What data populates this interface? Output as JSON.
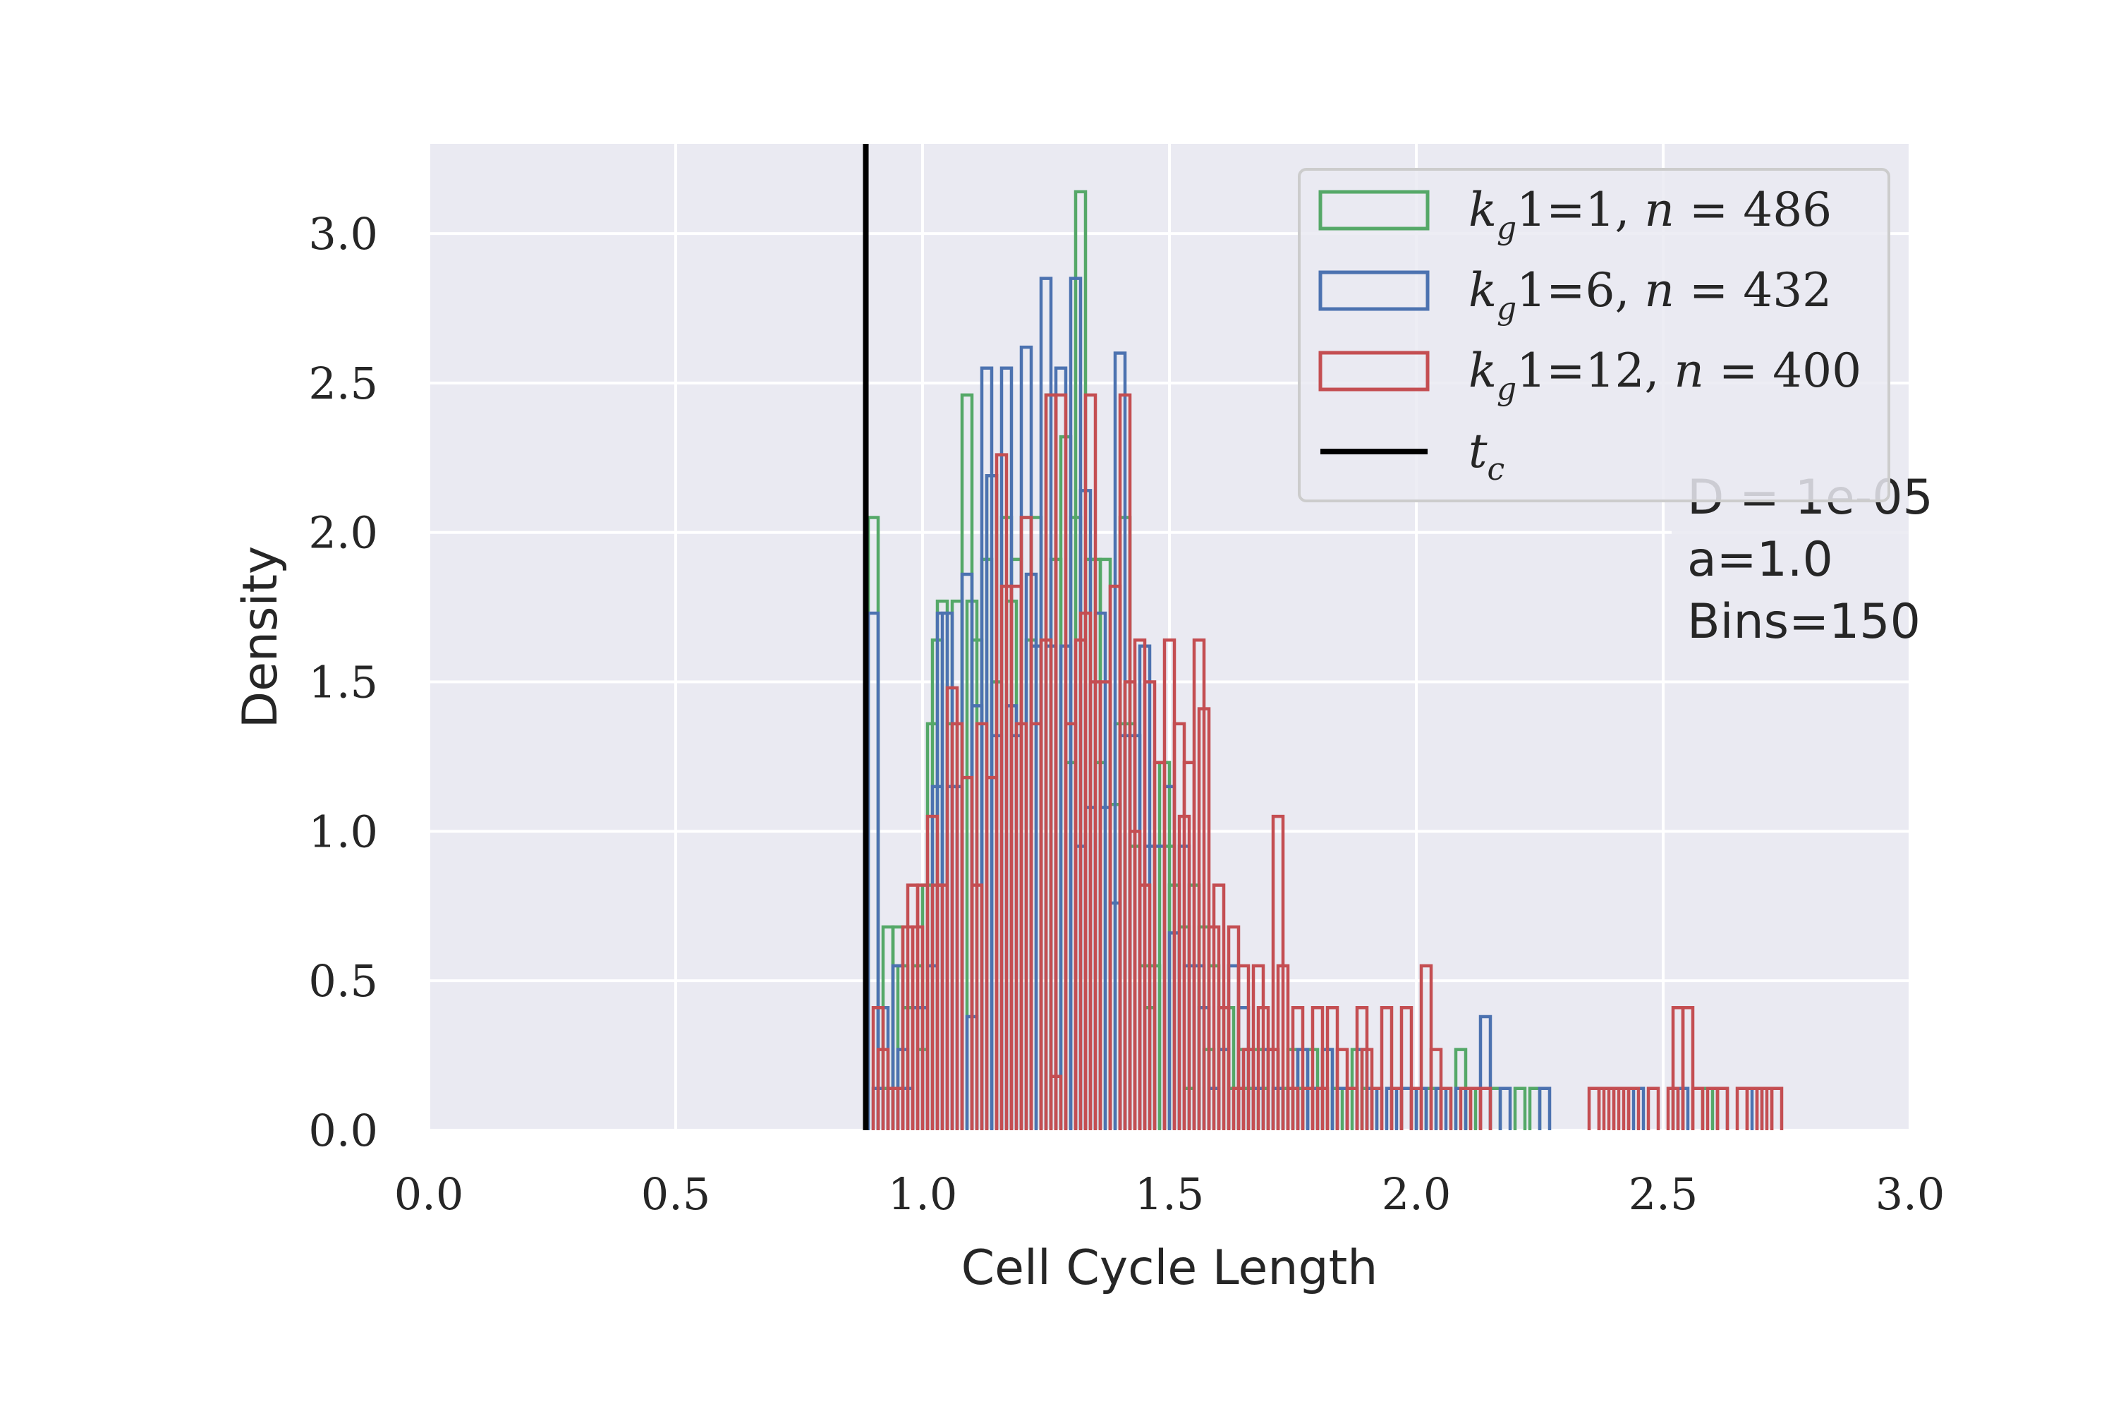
{
  "chart_data": {
    "type": "histogram",
    "xlabel": "Cell Cycle Length",
    "ylabel": "Density",
    "xlim": [
      0.0,
      3.0
    ],
    "ylim": [
      0.0,
      3.3
    ],
    "xticks": [
      "0.0",
      "0.5",
      "1.0",
      "1.5",
      "2.0",
      "2.5",
      "3.0"
    ],
    "yticks": [
      "0.0",
      "0.5",
      "1.0",
      "1.5",
      "2.0",
      "2.5",
      "3.0"
    ],
    "grid": true,
    "legend_position": "upper right",
    "tc": 0.885,
    "annotation": [
      "D = 1e-05",
      "a=1.0",
      "Bins=150"
    ],
    "series": [
      {
        "name": "k_g1=1, n = 486",
        "label_parts": [
          "k",
          "g",
          "1=1, ",
          "n",
          " = 486"
        ],
        "color": "#55a868",
        "points": [
          [
            0.89,
            2.05
          ],
          [
            0.91,
            0.14
          ],
          [
            0.92,
            0.68
          ],
          [
            0.94,
            0.68
          ],
          [
            0.95,
            0.55
          ],
          [
            0.96,
            0.41
          ],
          [
            0.98,
            0.55
          ],
          [
            0.99,
            0.27
          ],
          [
            1.0,
            0.82
          ],
          [
            1.01,
            1.36
          ],
          [
            1.02,
            1.64
          ],
          [
            1.03,
            1.77
          ],
          [
            1.05,
            1.36
          ],
          [
            1.06,
            1.77
          ],
          [
            1.08,
            2.46
          ],
          [
            1.09,
            1.77
          ],
          [
            1.1,
            1.64
          ],
          [
            1.12,
            1.91
          ],
          [
            1.13,
            2.19
          ],
          [
            1.14,
            1.5
          ],
          [
            1.16,
            2.05
          ],
          [
            1.17,
            1.77
          ],
          [
            1.18,
            1.91
          ],
          [
            1.2,
            2.05
          ],
          [
            1.21,
            1.64
          ],
          [
            1.22,
            2.05
          ],
          [
            1.24,
            1.64
          ],
          [
            1.25,
            2.46
          ],
          [
            1.26,
            1.91
          ],
          [
            1.28,
            2.32
          ],
          [
            1.29,
            1.23
          ],
          [
            1.3,
            2.05
          ],
          [
            1.31,
            3.14
          ],
          [
            1.33,
            1.91
          ],
          [
            1.34,
            1.91
          ],
          [
            1.35,
            1.23
          ],
          [
            1.36,
            1.91
          ],
          [
            1.38,
            1.09
          ],
          [
            1.39,
            1.36
          ],
          [
            1.4,
            2.05
          ],
          [
            1.41,
            1.36
          ],
          [
            1.42,
            0.95
          ],
          [
            1.44,
            0.55
          ],
          [
            1.45,
            0.41
          ],
          [
            1.46,
            0.55
          ],
          [
            1.48,
            1.23
          ],
          [
            1.49,
            0.95
          ],
          [
            1.5,
            0.82
          ],
          [
            1.52,
            0.68
          ],
          [
            1.53,
            0.14
          ],
          [
            1.54,
            0.82
          ],
          [
            1.56,
            0.68
          ],
          [
            1.57,
            0.27
          ],
          [
            1.58,
            0.55
          ],
          [
            1.6,
            0.27
          ],
          [
            1.61,
            0.41
          ],
          [
            1.62,
            0.14
          ],
          [
            1.64,
            0.27
          ],
          [
            1.65,
            0.14
          ],
          [
            1.67,
            0.27
          ],
          [
            1.68,
            0.14
          ],
          [
            1.7,
            0.27
          ],
          [
            1.71,
            0.14
          ],
          [
            1.73,
            0.14
          ],
          [
            1.74,
            0.27
          ],
          [
            1.75,
            0.14
          ],
          [
            1.77,
            0.14
          ],
          [
            1.78,
            0.27
          ],
          [
            1.8,
            0.14
          ],
          [
            1.81,
            0.27
          ],
          [
            1.83,
            0.14
          ],
          [
            1.84,
            0.14
          ],
          [
            1.86,
            0.14
          ],
          [
            1.87,
            0.27
          ],
          [
            1.89,
            0.14
          ],
          [
            1.9,
            0.14
          ],
          [
            1.95,
            0.14
          ],
          [
            2.0,
            0.14
          ],
          [
            2.02,
            0.14
          ],
          [
            2.05,
            0.14
          ],
          [
            2.08,
            0.27
          ],
          [
            2.1,
            0.14
          ],
          [
            2.15,
            0.14
          ],
          [
            2.2,
            0.14
          ],
          [
            2.23,
            0.14
          ],
          [
            2.52,
            0.14
          ],
          [
            2.58,
            0.14
          ]
        ]
      },
      {
        "name": "k_g1=6, n = 432",
        "label_parts": [
          "k",
          "g",
          "1=6, ",
          "n",
          " = 432"
        ],
        "color": "#4c72b0",
        "points": [
          [
            0.89,
            1.73
          ],
          [
            0.9,
            0.14
          ],
          [
            0.91,
            0.41
          ],
          [
            0.93,
            0.14
          ],
          [
            0.94,
            0.55
          ],
          [
            0.95,
            0.27
          ],
          [
            0.96,
            0.14
          ],
          [
            0.98,
            0.41
          ],
          [
            0.99,
            0.41
          ],
          [
            1.01,
            0.55
          ],
          [
            1.02,
            1.15
          ],
          [
            1.03,
            1.73
          ],
          [
            1.04,
            1.73
          ],
          [
            1.05,
            1.15
          ],
          [
            1.06,
            1.15
          ],
          [
            1.08,
            1.86
          ],
          [
            1.09,
            0.38
          ],
          [
            1.1,
            1.42
          ],
          [
            1.12,
            2.55
          ],
          [
            1.13,
            2.19
          ],
          [
            1.14,
            1.32
          ],
          [
            1.16,
            2.55
          ],
          [
            1.17,
            1.42
          ],
          [
            1.18,
            1.32
          ],
          [
            1.2,
            2.62
          ],
          [
            1.21,
            1.86
          ],
          [
            1.22,
            1.62
          ],
          [
            1.24,
            2.85
          ],
          [
            1.25,
            1.62
          ],
          [
            1.27,
            2.55
          ],
          [
            1.28,
            1.62
          ],
          [
            1.3,
            2.85
          ],
          [
            1.31,
            0.95
          ],
          [
            1.32,
            2.14
          ],
          [
            1.33,
            1.08
          ],
          [
            1.35,
            1.73
          ],
          [
            1.36,
            1.08
          ],
          [
            1.38,
            0.76
          ],
          [
            1.39,
            2.6
          ],
          [
            1.4,
            1.32
          ],
          [
            1.42,
            1.32
          ],
          [
            1.44,
            1.62
          ],
          [
            1.45,
            0.95
          ],
          [
            1.47,
            0.95
          ],
          [
            1.49,
            1.15
          ],
          [
            1.5,
            0.66
          ],
          [
            1.52,
            0.95
          ],
          [
            1.53,
            0.55
          ],
          [
            1.55,
            0.55
          ],
          [
            1.56,
            0.41
          ],
          [
            1.58,
            0.14
          ],
          [
            1.6,
            0.27
          ],
          [
            1.62,
            0.55
          ],
          [
            1.64,
            0.41
          ],
          [
            1.65,
            0.27
          ],
          [
            1.67,
            0.14
          ],
          [
            1.69,
            0.27
          ],
          [
            1.71,
            0.14
          ],
          [
            1.74,
            0.14
          ],
          [
            1.76,
            0.27
          ],
          [
            1.78,
            0.14
          ],
          [
            1.81,
            0.27
          ],
          [
            1.84,
            0.14
          ],
          [
            1.86,
            0.14
          ],
          [
            1.88,
            0.27
          ],
          [
            1.9,
            0.14
          ],
          [
            1.94,
            0.14
          ],
          [
            1.97,
            0.14
          ],
          [
            2.0,
            0.14
          ],
          [
            2.04,
            0.14
          ],
          [
            2.08,
            0.14
          ],
          [
            2.13,
            0.38
          ],
          [
            2.17,
            0.14
          ],
          [
            2.25,
            0.14
          ],
          [
            2.44,
            0.14
          ],
          [
            2.53,
            0.14
          ],
          [
            2.61,
            0.14
          ],
          [
            2.68,
            0.14
          ]
        ]
      },
      {
        "name": "k_g1=12, n = 400",
        "label_parts": [
          "k",
          "g",
          "1=12, ",
          "n",
          " = 400"
        ],
        "color": "#c44e52",
        "points": [
          [
            0.9,
            0.41
          ],
          [
            0.91,
            0.27
          ],
          [
            0.93,
            0.14
          ],
          [
            0.94,
            0.14
          ],
          [
            0.96,
            0.68
          ],
          [
            0.97,
            0.82
          ],
          [
            0.98,
            0.68
          ],
          [
            0.99,
            0.82
          ],
          [
            1.01,
            1.05
          ],
          [
            1.02,
            0.82
          ],
          [
            1.03,
            0.82
          ],
          [
            1.05,
            1.48
          ],
          [
            1.06,
            1.36
          ],
          [
            1.08,
            1.18
          ],
          [
            1.1,
            0.82
          ],
          [
            1.11,
            1.36
          ],
          [
            1.13,
            1.18
          ],
          [
            1.15,
            2.26
          ],
          [
            1.16,
            1.82
          ],
          [
            1.18,
            1.82
          ],
          [
            1.19,
            1.36
          ],
          [
            1.2,
            2.05
          ],
          [
            1.22,
            1.36
          ],
          [
            1.24,
            1.64
          ],
          [
            1.25,
            2.46
          ],
          [
            1.26,
            0.18
          ],
          [
            1.27,
            2.46
          ],
          [
            1.29,
            1.36
          ],
          [
            1.31,
            1.64
          ],
          [
            1.32,
            1.73
          ],
          [
            1.33,
            2.46
          ],
          [
            1.34,
            1.5
          ],
          [
            1.36,
            1.5
          ],
          [
            1.38,
            1.82
          ],
          [
            1.4,
            2.46
          ],
          [
            1.41,
            1.5
          ],
          [
            1.42,
            1.0
          ],
          [
            1.43,
            1.64
          ],
          [
            1.44,
            0.82
          ],
          [
            1.45,
            1.5
          ],
          [
            1.47,
            1.23
          ],
          [
            1.49,
            1.64
          ],
          [
            1.51,
            1.36
          ],
          [
            1.52,
            1.05
          ],
          [
            1.53,
            1.23
          ],
          [
            1.55,
            1.64
          ],
          [
            1.56,
            1.41
          ],
          [
            1.58,
            0.68
          ],
          [
            1.59,
            0.82
          ],
          [
            1.6,
            0.41
          ],
          [
            1.62,
            0.68
          ],
          [
            1.63,
            0.14
          ],
          [
            1.64,
            0.55
          ],
          [
            1.65,
            0.27
          ],
          [
            1.67,
            0.55
          ],
          [
            1.68,
            0.41
          ],
          [
            1.7,
            0.27
          ],
          [
            1.71,
            1.05
          ],
          [
            1.72,
            0.55
          ],
          [
            1.74,
            0.14
          ],
          [
            1.75,
            0.41
          ],
          [
            1.77,
            0.14
          ],
          [
            1.79,
            0.41
          ],
          [
            1.8,
            0.14
          ],
          [
            1.82,
            0.41
          ],
          [
            1.84,
            0.27
          ],
          [
            1.86,
            0.14
          ],
          [
            1.88,
            0.41
          ],
          [
            1.89,
            0.27
          ],
          [
            1.91,
            0.14
          ],
          [
            1.93,
            0.41
          ],
          [
            1.95,
            0.14
          ],
          [
            1.97,
            0.41
          ],
          [
            1.99,
            0.14
          ],
          [
            2.01,
            0.55
          ],
          [
            2.03,
            0.27
          ],
          [
            2.05,
            0.14
          ],
          [
            2.09,
            0.14
          ],
          [
            2.11,
            0.14
          ],
          [
            2.13,
            0.14
          ],
          [
            2.35,
            0.14
          ],
          [
            2.37,
            0.14
          ],
          [
            2.38,
            0.14
          ],
          [
            2.4,
            0.14
          ],
          [
            2.41,
            0.14
          ],
          [
            2.43,
            0.14
          ],
          [
            2.47,
            0.14
          ],
          [
            2.51,
            0.14
          ],
          [
            2.52,
            0.41
          ],
          [
            2.54,
            0.41
          ],
          [
            2.56,
            0.14
          ],
          [
            2.59,
            0.14
          ],
          [
            2.61,
            0.14
          ],
          [
            2.65,
            0.14
          ],
          [
            2.67,
            0.14
          ],
          [
            2.69,
            0.14
          ],
          [
            2.7,
            0.14
          ],
          [
            2.72,
            0.14
          ]
        ]
      }
    ]
  },
  "legend": {
    "tc_label_base": "t",
    "tc_label_sub": "c"
  },
  "colors": {
    "panel": "#eaeaf2",
    "grid": "#ffffff",
    "text": "#262626",
    "tc_line": "#000000"
  }
}
